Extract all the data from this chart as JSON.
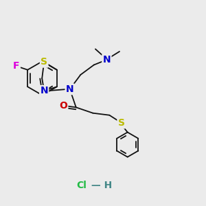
{
  "bg_color": "#ebebeb",
  "bond_color": "#111111",
  "bond_lw": 1.3,
  "atom_colors": {
    "F": "#dd00dd",
    "S": "#bbbb00",
    "N": "#0000cc",
    "O": "#cc0000",
    "Cl": "#22bb44",
    "H": "#448888"
  },
  "font_size": 9.5
}
